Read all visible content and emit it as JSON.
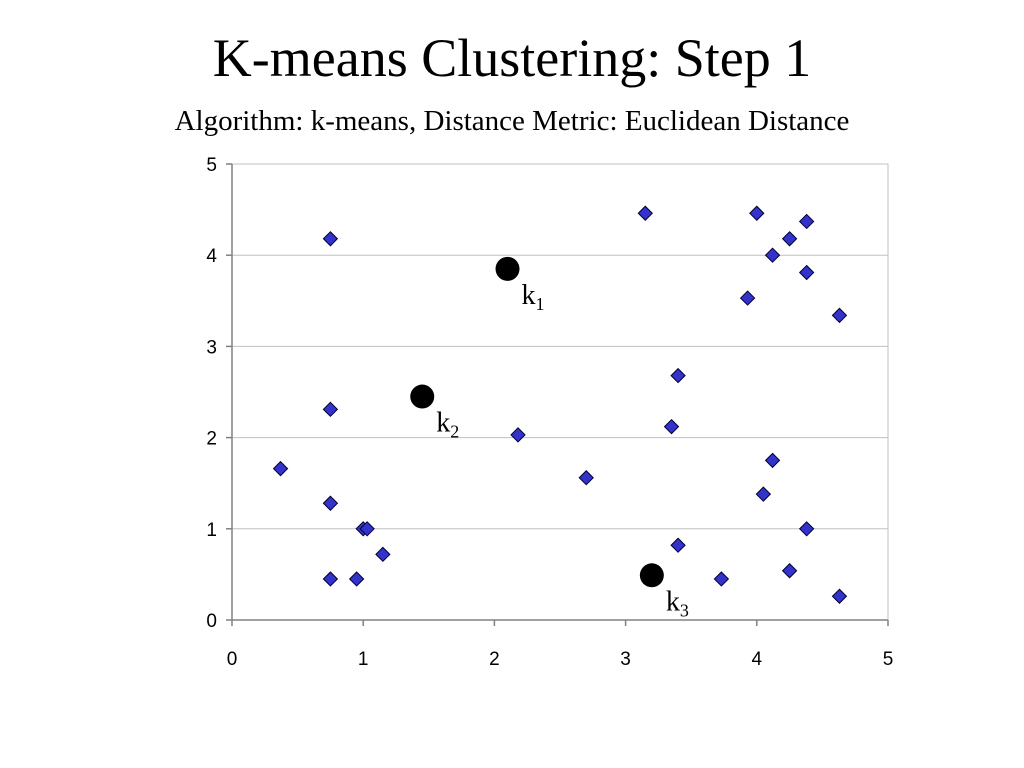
{
  "title": "K-means Clustering: Step 1",
  "subtitle": "Algorithm: k-means, Distance Metric: Euclidean Distance",
  "chart_data": {
    "type": "scatter",
    "title": "K-means Clustering: Step 1",
    "subtitle": "Algorithm: k-means, Distance Metric: Euclidean Distance",
    "xlabel": "",
    "ylabel": "",
    "xlim": [
      0,
      5
    ],
    "ylim": [
      0,
      5
    ],
    "xticks": [
      "0",
      "1",
      "2",
      "3",
      "4",
      "5"
    ],
    "yticks": [
      "0",
      "1",
      "2",
      "3",
      "4",
      "5"
    ],
    "grid": "horizontal",
    "legend": "none",
    "series": [
      {
        "marker": "diamond",
        "color": "#3333cc",
        "points": [
          [
            0.37,
            1.66
          ],
          [
            0.75,
            4.18
          ],
          [
            0.75,
            2.31
          ],
          [
            0.75,
            1.28
          ],
          [
            0.75,
            0.45
          ],
          [
            0.95,
            0.45
          ],
          [
            1.0,
            1.0
          ],
          [
            1.03,
            1.0
          ],
          [
            1.15,
            0.72
          ],
          [
            2.18,
            2.03
          ],
          [
            2.7,
            1.56
          ],
          [
            3.15,
            4.46
          ],
          [
            3.35,
            2.12
          ],
          [
            3.4,
            2.68
          ],
          [
            3.4,
            0.82
          ],
          [
            3.73,
            0.45
          ],
          [
            3.93,
            3.53
          ],
          [
            4.0,
            4.46
          ],
          [
            4.05,
            1.38
          ],
          [
            4.12,
            4.0
          ],
          [
            4.12,
            1.75
          ],
          [
            4.25,
            4.18
          ],
          [
            4.25,
            0.54
          ],
          [
            4.38,
            4.37
          ],
          [
            4.38,
            3.81
          ],
          [
            4.38,
            1.0
          ],
          [
            4.63,
            3.34
          ],
          [
            4.63,
            0.26
          ]
        ]
      }
    ],
    "centroids": [
      {
        "label": "k",
        "sub": "1",
        "x": 2.1,
        "y": 3.85
      },
      {
        "label": "k",
        "sub": "2",
        "x": 1.45,
        "y": 2.45
      },
      {
        "label": "k",
        "sub": "3",
        "x": 3.2,
        "y": 0.49
      }
    ],
    "colors": {
      "point_fill": "#3333cc",
      "point_stroke": "#000033",
      "centroid": "#000000",
      "grid": "#c0c0c0",
      "axis": "#808080"
    }
  }
}
